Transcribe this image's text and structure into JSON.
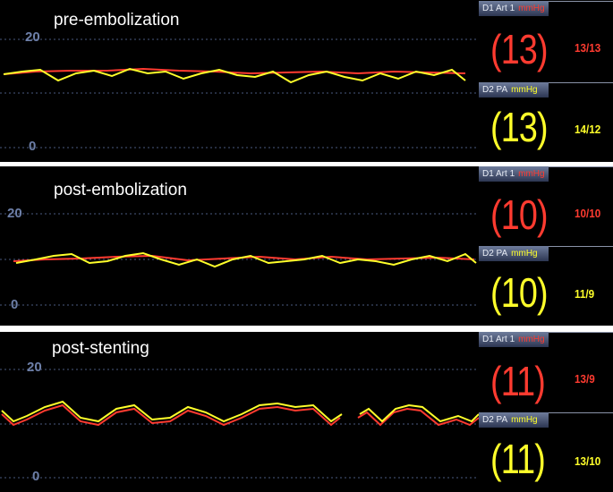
{
  "colors": {
    "art": "#ff3b30",
    "pa": "#ffff2a",
    "scale": "#6d7fa8",
    "bg": "#000000"
  },
  "panels": [
    {
      "title": "pre-embolization",
      "scale_top": "20",
      "scale_bottom": "0",
      "art": {
        "label": "D1 Art 1",
        "unit": "mmHg",
        "mean": "(13)",
        "sysdia": "13/13"
      },
      "pa": {
        "label": "D2 PA",
        "unit": "mmHg",
        "mean": "(13)",
        "sysdia": "14/12"
      }
    },
    {
      "title": "post-embolization",
      "scale_top": "20",
      "scale_bottom": "0",
      "art": {
        "label": "D1 Art 1",
        "unit": "mmHg",
        "mean": "(10)",
        "sysdia": "10/10"
      },
      "pa": {
        "label": "D2 PA",
        "unit": "mmHg",
        "mean": "(10)",
        "sysdia": "11/9"
      }
    },
    {
      "title": "post-stenting",
      "scale_top": "20",
      "scale_bottom": "0",
      "art": {
        "label": "D1 Art 1",
        "unit": "mmHg",
        "mean": "(11)",
        "sysdia": "13/9"
      },
      "pa": {
        "label": "D2 PA",
        "unit": "mmHg",
        "mean": "(11)",
        "sysdia": "13/10"
      }
    }
  ]
}
